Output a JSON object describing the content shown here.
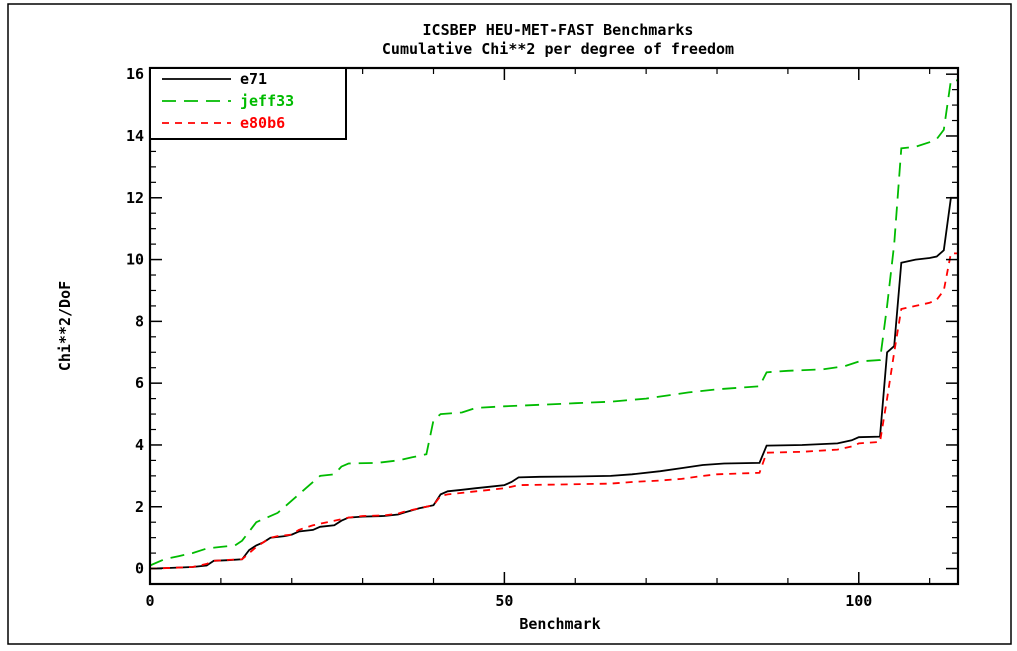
{
  "chart_data": {
    "type": "line",
    "title": "ICSBEP HEU-MET-FAST Benchmarks",
    "subtitle": "Cumulative Chi**2 per degree of freedom",
    "xlabel": "Benchmark",
    "ylabel": "Chi**2/DoF",
    "xlim": [
      0,
      114
    ],
    "ylim": [
      -0.5,
      16.2
    ],
    "xticks": [
      0,
      50,
      100
    ],
    "yticks": [
      0,
      2,
      4,
      6,
      8,
      10,
      12,
      14,
      16
    ],
    "grid": false,
    "legend_position": "top-left",
    "series": [
      {
        "name": "e71",
        "color": "#000000",
        "dash": "solid",
        "points": [
          [
            0,
            0
          ],
          [
            3,
            0.02
          ],
          [
            6,
            0.05
          ],
          [
            8,
            0.1
          ],
          [
            9,
            0.25
          ],
          [
            11,
            0.27
          ],
          [
            13,
            0.3
          ],
          [
            14,
            0.6
          ],
          [
            15,
            0.75
          ],
          [
            16,
            0.85
          ],
          [
            17,
            1.0
          ],
          [
            19,
            1.05
          ],
          [
            20,
            1.1
          ],
          [
            21,
            1.2
          ],
          [
            23,
            1.25
          ],
          [
            24,
            1.35
          ],
          [
            26,
            1.4
          ],
          [
            27,
            1.55
          ],
          [
            28,
            1.65
          ],
          [
            30,
            1.68
          ],
          [
            33,
            1.7
          ],
          [
            35,
            1.75
          ],
          [
            36,
            1.82
          ],
          [
            38,
            1.95
          ],
          [
            40,
            2.05
          ],
          [
            41,
            2.4
          ],
          [
            42,
            2.5
          ],
          [
            44,
            2.55
          ],
          [
            46,
            2.6
          ],
          [
            48,
            2.65
          ],
          [
            50,
            2.7
          ],
          [
            51,
            2.8
          ],
          [
            52,
            2.95
          ],
          [
            55,
            2.97
          ],
          [
            60,
            2.98
          ],
          [
            65,
            3.0
          ],
          [
            68,
            3.05
          ],
          [
            72,
            3.15
          ],
          [
            75,
            3.25
          ],
          [
            78,
            3.35
          ],
          [
            81,
            3.4
          ],
          [
            86,
            3.42
          ],
          [
            87,
            3.98
          ],
          [
            92,
            4.0
          ],
          [
            97,
            4.05
          ],
          [
            99,
            4.15
          ],
          [
            100,
            4.25
          ],
          [
            103,
            4.27
          ],
          [
            104,
            7.0
          ],
          [
            105,
            7.2
          ],
          [
            106,
            9.9
          ],
          [
            108,
            10.0
          ],
          [
            110,
            10.05
          ],
          [
            111,
            10.1
          ],
          [
            112,
            10.3
          ],
          [
            113,
            12.0
          ],
          [
            114,
            12.0
          ]
        ]
      },
      {
        "name": "jeff33",
        "color": "#00bb00",
        "dash": "long",
        "points": [
          [
            0,
            0.1
          ],
          [
            2,
            0.3
          ],
          [
            4,
            0.4
          ],
          [
            6,
            0.5
          ],
          [
            8,
            0.65
          ],
          [
            10,
            0.7
          ],
          [
            12,
            0.75
          ],
          [
            13,
            0.9
          ],
          [
            14,
            1.2
          ],
          [
            15,
            1.5
          ],
          [
            16,
            1.6
          ],
          [
            18,
            1.8
          ],
          [
            19,
            2.0
          ],
          [
            20,
            2.2
          ],
          [
            22,
            2.6
          ],
          [
            24,
            3.0
          ],
          [
            26,
            3.05
          ],
          [
            27,
            3.3
          ],
          [
            28,
            3.4
          ],
          [
            32,
            3.42
          ],
          [
            35,
            3.5
          ],
          [
            37,
            3.6
          ],
          [
            39,
            3.7
          ],
          [
            40,
            4.8
          ],
          [
            41,
            5.0
          ],
          [
            44,
            5.05
          ],
          [
            46,
            5.2
          ],
          [
            50,
            5.25
          ],
          [
            55,
            5.3
          ],
          [
            60,
            5.35
          ],
          [
            65,
            5.4
          ],
          [
            70,
            5.5
          ],
          [
            73,
            5.6
          ],
          [
            76,
            5.7
          ],
          [
            80,
            5.8
          ],
          [
            83,
            5.85
          ],
          [
            86,
            5.9
          ],
          [
            87,
            6.35
          ],
          [
            90,
            6.4
          ],
          [
            95,
            6.45
          ],
          [
            98,
            6.55
          ],
          [
            100,
            6.7
          ],
          [
            103,
            6.75
          ],
          [
            104,
            8.5
          ],
          [
            105,
            10.5
          ],
          [
            106,
            13.6
          ],
          [
            108,
            13.65
          ],
          [
            110,
            13.8
          ],
          [
            111,
            13.9
          ],
          [
            112,
            14.2
          ],
          [
            113,
            15.8
          ],
          [
            114,
            15.8
          ]
        ]
      },
      {
        "name": "e80b6",
        "color": "#ff0000",
        "dash": "short",
        "points": [
          [
            0,
            0
          ],
          [
            3,
            0.02
          ],
          [
            6,
            0.05
          ],
          [
            8,
            0.15
          ],
          [
            9,
            0.25
          ],
          [
            11,
            0.28
          ],
          [
            13,
            0.3
          ],
          [
            14,
            0.5
          ],
          [
            15,
            0.7
          ],
          [
            16,
            0.85
          ],
          [
            17,
            1.0
          ],
          [
            18,
            1.05
          ],
          [
            20,
            1.1
          ],
          [
            21,
            1.25
          ],
          [
            23,
            1.4
          ],
          [
            24,
            1.45
          ],
          [
            26,
            1.55
          ],
          [
            28,
            1.65
          ],
          [
            30,
            1.7
          ],
          [
            33,
            1.72
          ],
          [
            35,
            1.78
          ],
          [
            36,
            1.85
          ],
          [
            38,
            1.95
          ],
          [
            40,
            2.05
          ],
          [
            41,
            2.35
          ],
          [
            42,
            2.4
          ],
          [
            44,
            2.45
          ],
          [
            46,
            2.5
          ],
          [
            48,
            2.55
          ],
          [
            50,
            2.6
          ],
          [
            51,
            2.65
          ],
          [
            52,
            2.7
          ],
          [
            58,
            2.72
          ],
          [
            65,
            2.75
          ],
          [
            68,
            2.8
          ],
          [
            72,
            2.85
          ],
          [
            75,
            2.9
          ],
          [
            78,
            3.0
          ],
          [
            80,
            3.05
          ],
          [
            86,
            3.1
          ],
          [
            87,
            3.75
          ],
          [
            92,
            3.78
          ],
          [
            97,
            3.85
          ],
          [
            99,
            3.95
          ],
          [
            100,
            4.05
          ],
          [
            103,
            4.1
          ],
          [
            104,
            5.5
          ],
          [
            105,
            7.0
          ],
          [
            106,
            8.4
          ],
          [
            108,
            8.5
          ],
          [
            110,
            8.6
          ],
          [
            111,
            8.7
          ],
          [
            112,
            9.0
          ],
          [
            113,
            10.2
          ],
          [
            114,
            10.2
          ]
        ]
      }
    ]
  }
}
